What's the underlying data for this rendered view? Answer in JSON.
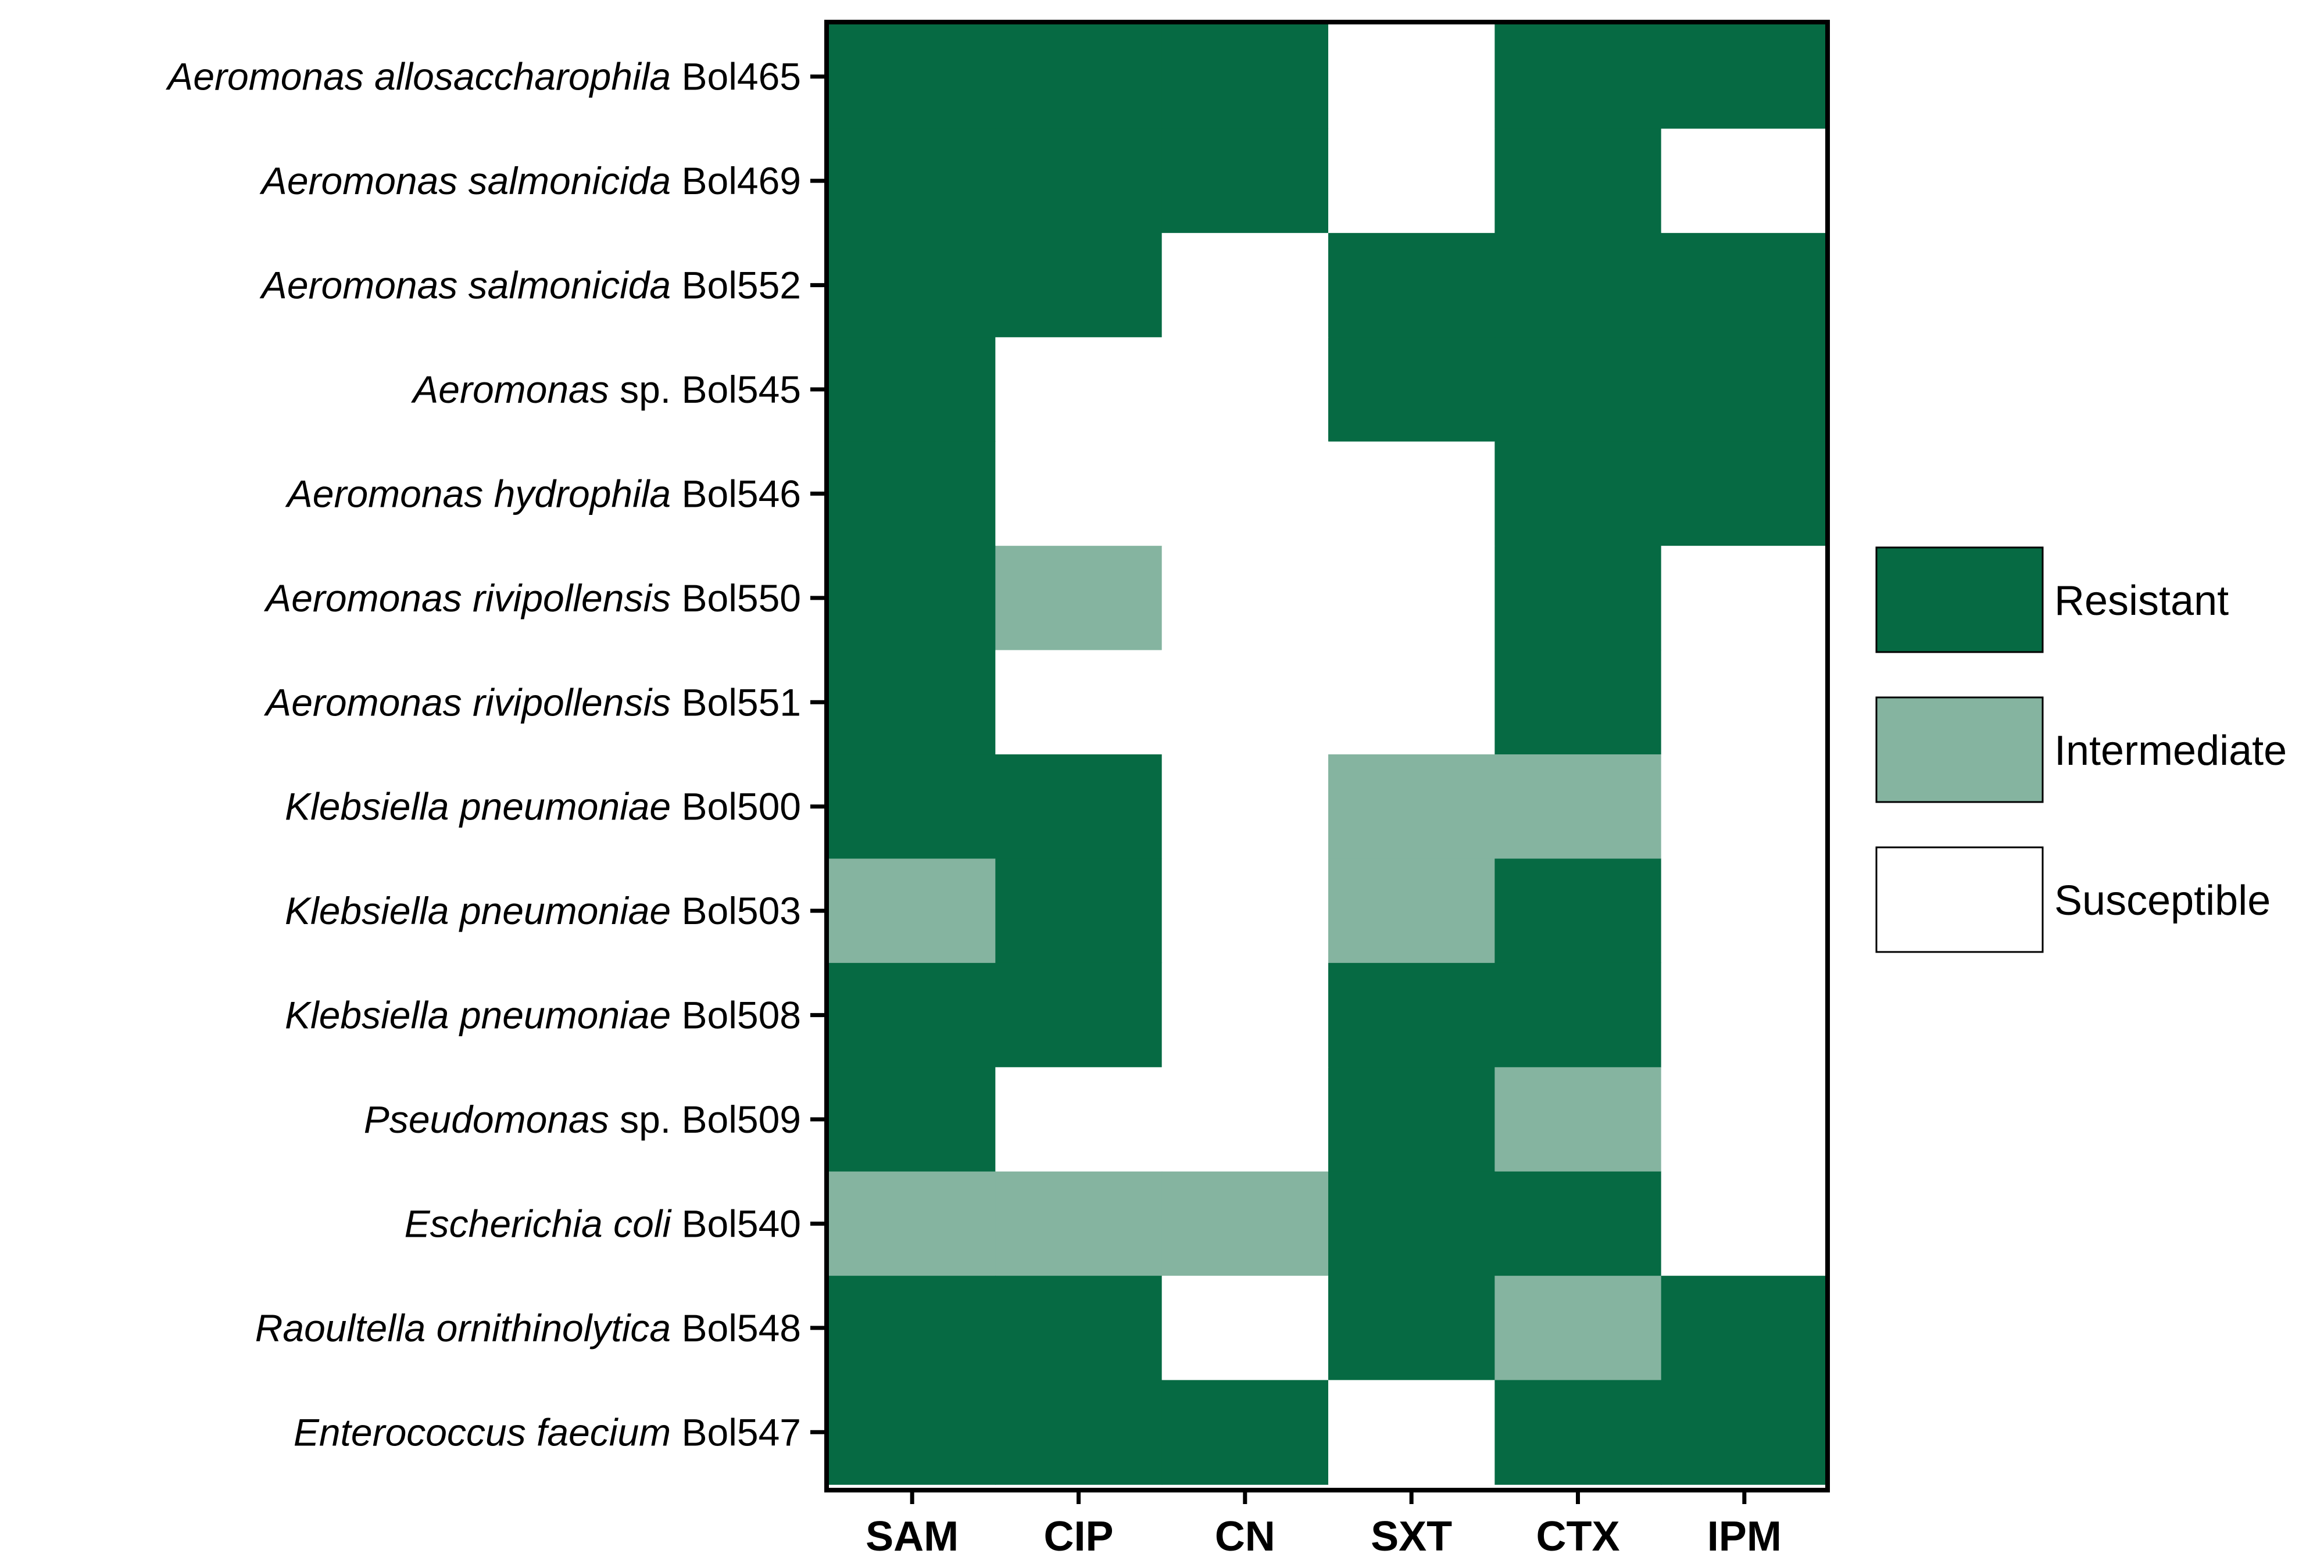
{
  "chart_data": {
    "type": "heatmap",
    "columns": [
      "SAM",
      "CIP",
      "CN",
      "SXT",
      "CTX",
      "IPM"
    ],
    "rows": [
      {
        "species": "Aeromonas allosaccharophila",
        "suffix": "",
        "strain": "Bol465",
        "values": [
          "R",
          "R",
          "R",
          "S",
          "R",
          "R"
        ]
      },
      {
        "species": "Aeromonas salmonicida",
        "suffix": "",
        "strain": "Bol469",
        "values": [
          "R",
          "R",
          "R",
          "S",
          "R",
          "S"
        ]
      },
      {
        "species": "Aeromonas salmonicida",
        "suffix": "",
        "strain": "Bol552",
        "values": [
          "R",
          "R",
          "S",
          "R",
          "R",
          "R"
        ]
      },
      {
        "species": "Aeromonas",
        "suffix": "sp.",
        "strain": "Bol545",
        "values": [
          "R",
          "S",
          "S",
          "R",
          "R",
          "R"
        ]
      },
      {
        "species": "Aeromonas hydrophila",
        "suffix": "",
        "strain": "Bol546",
        "values": [
          "R",
          "S",
          "S",
          "S",
          "R",
          "R"
        ]
      },
      {
        "species": "Aeromonas rivipollensis",
        "suffix": "",
        "strain": "Bol550",
        "values": [
          "R",
          "I",
          "S",
          "S",
          "R",
          "S"
        ]
      },
      {
        "species": "Aeromonas rivipollensis",
        "suffix": "",
        "strain": "Bol551",
        "values": [
          "R",
          "S",
          "S",
          "S",
          "R",
          "S"
        ]
      },
      {
        "species": "Klebsiella pneumoniae",
        "suffix": "",
        "strain": "Bol500",
        "values": [
          "R",
          "R",
          "S",
          "I",
          "I",
          "S"
        ]
      },
      {
        "species": "Klebsiella pneumoniae",
        "suffix": "",
        "strain": "Bol503",
        "values": [
          "I",
          "R",
          "S",
          "I",
          "R",
          "S"
        ]
      },
      {
        "species": "Klebsiella pneumoniae",
        "suffix": "",
        "strain": "Bol508",
        "values": [
          "R",
          "R",
          "S",
          "R",
          "R",
          "S"
        ]
      },
      {
        "species": "Pseudomonas",
        "suffix": "sp.",
        "strain": "Bol509",
        "values": [
          "R",
          "S",
          "S",
          "R",
          "I",
          "S"
        ]
      },
      {
        "species": "Escherichia coli",
        "suffix": "",
        "strain": "Bol540",
        "values": [
          "I",
          "I",
          "I",
          "R",
          "R",
          "S"
        ]
      },
      {
        "species": "Raoultella ornithinolytica",
        "suffix": "",
        "strain": "Bol548",
        "values": [
          "R",
          "R",
          "S",
          "R",
          "I",
          "R"
        ]
      },
      {
        "species": "Enterococcus faecium",
        "suffix": "",
        "strain": "Bol547",
        "values": [
          "R",
          "R",
          "R",
          "S",
          "R",
          "R"
        ]
      }
    ],
    "legend": [
      {
        "key": "R",
        "label": "Resistant",
        "color": "#066A43"
      },
      {
        "key": "I",
        "label": "Intermediate",
        "color": "#85B4A0"
      },
      {
        "key": "S",
        "label": "Susceptible",
        "color": "#FFFFFF"
      }
    ],
    "legend_placement": "right",
    "grid": false
  }
}
